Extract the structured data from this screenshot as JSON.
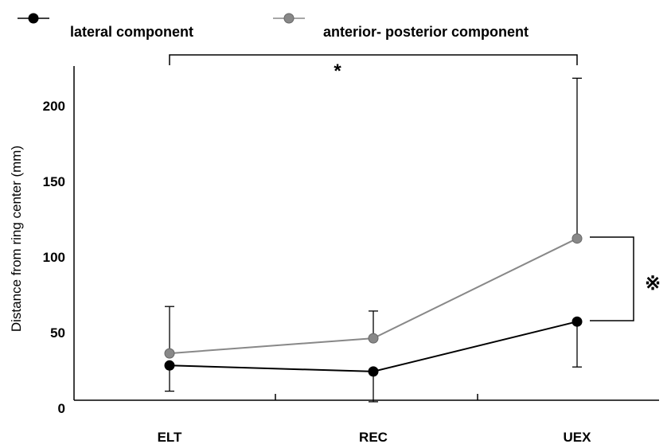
{
  "chart_data": {
    "type": "line",
    "categories": [
      "ELT",
      "REC",
      "UEX"
    ],
    "ylabel": "Distance from ring center (mm)",
    "yticks": [
      0,
      50,
      100,
      150,
      200
    ],
    "ylim": [
      0,
      220
    ],
    "series": [
      {
        "name": "lateral component",
        "values": [
          23,
          19,
          52
        ],
        "err_upper": [
          0,
          0,
          0
        ],
        "err_lower": [
          17,
          20,
          30
        ],
        "color": "#000000"
      },
      {
        "name": "anterior‐ posterior component",
        "values": [
          31,
          41,
          107
        ],
        "err_upper": [
          31,
          18,
          106
        ],
        "err_lower": [
          0,
          0,
          0
        ],
        "color": "#888888"
      }
    ],
    "legend_position": "top",
    "annotations": {
      "top_bracket_label": "*",
      "right_bracket_label": "※"
    }
  }
}
